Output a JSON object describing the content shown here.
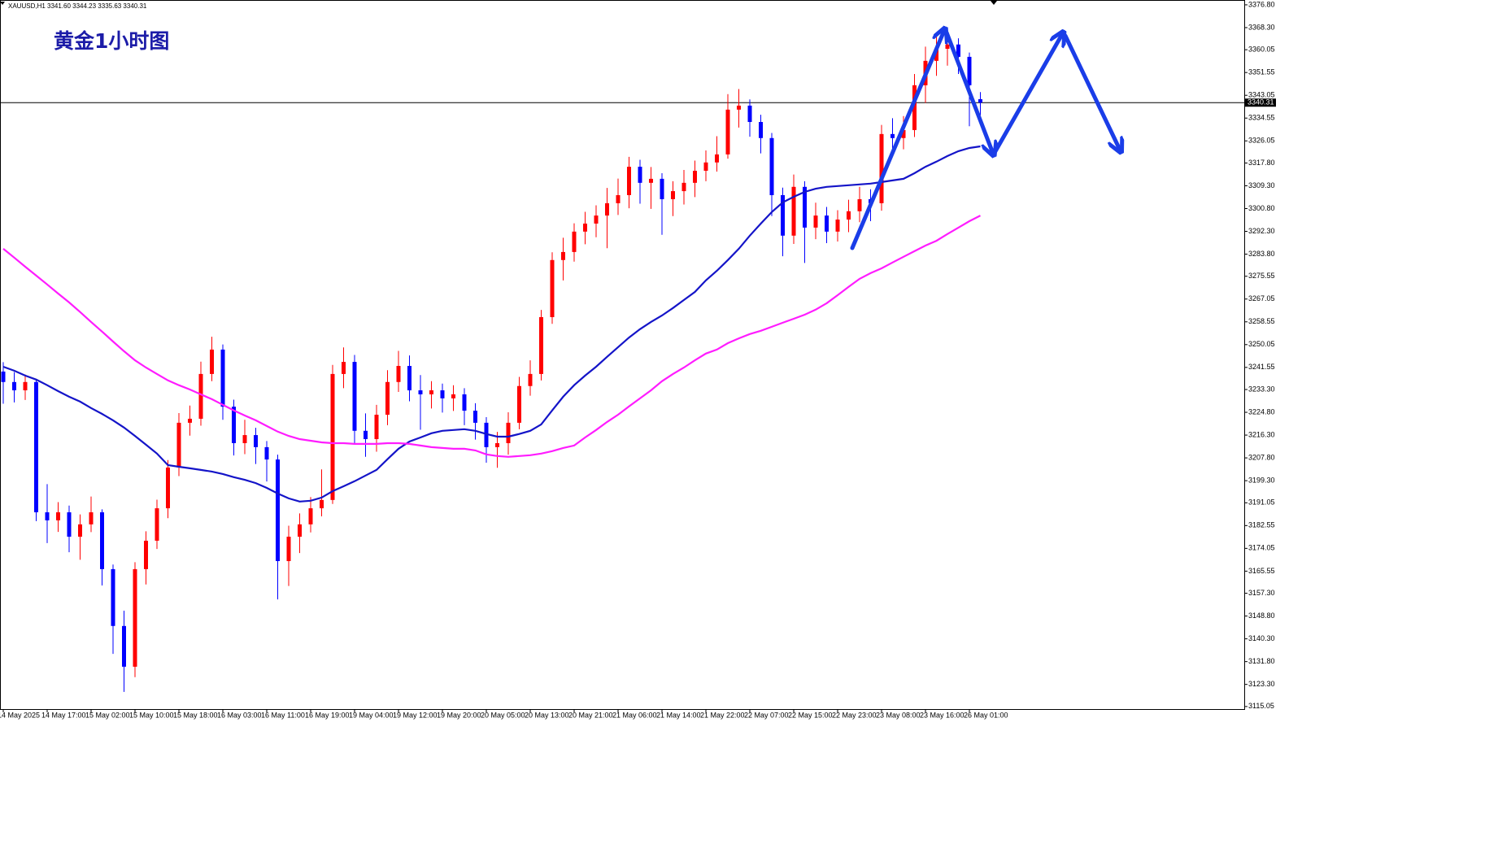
{
  "chart_data": {
    "type": "candlestick",
    "header": "XAUUSD,H1  3341.60 3344.23 3335.63 3340.31",
    "title": "黄金1小时图",
    "categories": [
      "14 May 2025",
      null,
      null,
      null,
      "14 May 17:00",
      null,
      null,
      null,
      "15 May 02:00",
      null,
      null,
      null,
      "15 May 10:00",
      null,
      null,
      null,
      "15 May 18:00",
      null,
      null,
      null,
      "16 May 03:00",
      null,
      null,
      null,
      "16 May 11:00",
      null,
      null,
      null,
      "16 May 19:00",
      null,
      null,
      null,
      "19 May 04:00",
      null,
      null,
      null,
      "19 May 12:00",
      null,
      null,
      null,
      "19 May 20:00",
      null,
      null,
      null,
      "20 May 05:00",
      null,
      null,
      null,
      "20 May 13:00",
      null,
      null,
      null,
      "20 May 21:00",
      null,
      null,
      null,
      "21 May 06:00",
      null,
      null,
      null,
      "21 May 14:00",
      null,
      null,
      null,
      "21 May 22:00",
      null,
      null,
      null,
      "22 May 07:00",
      null,
      null,
      null,
      "22 May 15:00",
      null,
      null,
      null,
      "22 May 23:00",
      null,
      null,
      null,
      "23 May 08:00",
      null,
      null,
      null,
      "23 May 16:00",
      null,
      null,
      null,
      "26 May 01:00",
      null
    ],
    "open": [
      3240.0,
      3236.1,
      3233.0,
      3236.1,
      3187.5,
      3184.5,
      3187.5,
      3178.4,
      3183.0,
      3187.5,
      3166.3,
      3145.1,
      3129.9,
      3166.3,
      3176.9,
      3189.0,
      3204.2,
      3220.9,
      3222.4,
      3239.1,
      3248.2,
      3226.9,
      3213.3,
      3216.3,
      3211.8,
      3207.2,
      3169.3,
      3178.4,
      3183.0,
      3189.0,
      3192.1,
      3239.1,
      3243.6,
      3217.9,
      3214.8,
      3223.9,
      3236.1,
      3242.1,
      3233.0,
      3231.5,
      3233.0,
      3230.0,
      3231.5,
      3225.4,
      3220.9,
      3211.8,
      3213.3,
      3220.9,
      3234.6,
      3239.1,
      3260.3,
      3281.6,
      3284.6,
      3292.2,
      3295.2,
      3298.2,
      3302.8,
      3305.8,
      3316.4,
      3310.4,
      3311.9,
      3304.3,
      3307.3,
      3310.4,
      3314.9,
      3318.0,
      3321.0,
      3337.7,
      3339.2,
      3333.1,
      3327.1,
      3305.8,
      3290.7,
      3308.9,
      3293.7,
      3298.2,
      3292.2,
      3296.7,
      3299.8,
      3304.3,
      3302.8,
      3328.6,
      3327.1,
      3330.1,
      3346.8,
      3355.9,
      3360.4,
      3362.0,
      3357.4,
      3341.6
    ],
    "high": [
      3243.5,
      3239.8,
      3238.9,
      3237.0,
      3198.0,
      3191.3,
      3190.0,
      3186.7,
      3193.4,
      3188.6,
      3168.0,
      3150.8,
      3168.9,
      3180.4,
      3192.2,
      3207.0,
      3224.5,
      3227.3,
      3243.7,
      3253.0,
      3250.1,
      3229.5,
      3222.0,
      3219.0,
      3214.1,
      3209.0,
      3182.5,
      3187.1,
      3193.2,
      3203.5,
      3242.5,
      3249.0,
      3246.2,
      3224.4,
      3227.6,
      3240.5,
      3247.7,
      3246.0,
      3238.7,
      3236.4,
      3235.5,
      3234.9,
      3233.8,
      3228.2,
      3223.0,
      3217.5,
      3224.8,
      3238.0,
      3244.2,
      3263.0,
      3284.5,
      3289.9,
      3295.3,
      3299.6,
      3302.0,
      3308.5,
      3312.0,
      3320.1,
      3319.0,
      3316.3,
      3314.0,
      3311.0,
      3315.2,
      3318.7,
      3322.5,
      3327.8,
      3343.5,
      3345.4,
      3341.5,
      3335.8,
      3329.0,
      3308.6,
      3313.5,
      3311.0,
      3303.0,
      3301.4,
      3300.2,
      3304.1,
      3308.9,
      3308.0,
      3332.0,
      3334.5,
      3335.3,
      3351.0,
      3361.2,
      3365.8,
      3367.5,
      3364.3,
      3359.0,
      3344.23
    ],
    "low": [
      3228.0,
      3228.5,
      3229.4,
      3184.2,
      3176.0,
      3180.2,
      3172.6,
      3169.8,
      3180.1,
      3160.2,
      3134.7,
      3120.5,
      3126.0,
      3160.6,
      3173.8,
      3185.3,
      3201.0,
      3216.1,
      3219.8,
      3236.4,
      3222.0,
      3208.7,
      3209.2,
      3205.5,
      3199.0,
      3155.0,
      3160.0,
      3172.3,
      3180.0,
      3186.0,
      3190.6,
      3233.8,
      3213.0,
      3208.2,
      3210.1,
      3220.0,
      3232.4,
      3228.9,
      3218.3,
      3226.2,
      3224.7,
      3225.3,
      3220.0,
      3214.6,
      3206.0,
      3204.1,
      3209.0,
      3218.5,
      3231.0,
      3236.7,
      3257.8,
      3274.0,
      3281.0,
      3287.5,
      3290.1,
      3286.0,
      3298.4,
      3300.9,
      3302.6,
      3300.7,
      3291.0,
      3298.0,
      3302.3,
      3305.1,
      3311.0,
      3314.6,
      3319.4,
      3331.0,
      3327.6,
      3321.4,
      3298.0,
      3283.0,
      3287.6,
      3280.5,
      3289.4,
      3287.9,
      3288.5,
      3292.0,
      3295.7,
      3296.1,
      3300.0,
      3321.8,
      3322.9,
      3327.5,
      3340.2,
      3350.3,
      3354.1,
      3351.0,
      3331.5,
      3335.63
    ],
    "close": [
      3236.1,
      3233.0,
      3236.1,
      3187.5,
      3184.5,
      3187.5,
      3178.4,
      3183.0,
      3187.5,
      3166.3,
      3145.1,
      3129.9,
      3166.3,
      3176.9,
      3189.0,
      3204.2,
      3220.9,
      3222.4,
      3239.1,
      3248.2,
      3226.9,
      3213.3,
      3216.3,
      3211.8,
      3207.2,
      3169.3,
      3178.4,
      3183.0,
      3189.0,
      3192.1,
      3239.1,
      3243.6,
      3217.9,
      3214.8,
      3223.9,
      3236.1,
      3242.1,
      3233.0,
      3231.5,
      3233.0,
      3230.0,
      3231.5,
      3225.4,
      3220.9,
      3211.8,
      3213.3,
      3220.9,
      3234.6,
      3239.1,
      3260.3,
      3281.6,
      3284.6,
      3292.2,
      3295.2,
      3298.2,
      3302.8,
      3305.8,
      3316.4,
      3310.4,
      3311.9,
      3304.3,
      3307.3,
      3310.4,
      3314.9,
      3318.0,
      3321.0,
      3337.7,
      3339.2,
      3333.1,
      3327.1,
      3305.8,
      3290.7,
      3308.9,
      3293.7,
      3298.2,
      3292.2,
      3296.7,
      3299.8,
      3304.3,
      3302.8,
      3328.6,
      3327.1,
      3330.1,
      3346.8,
      3355.9,
      3360.4,
      3362.0,
      3357.4,
      3346.8,
      3340.31
    ],
    "bull_color": "#ff0000",
    "bear_color": "#0000ff",
    "lines": [
      {
        "color": "#1414c8",
        "values": [
          3241.8,
          3240.3,
          3238.5,
          3237.0,
          3234.9,
          3232.7,
          3230.6,
          3228.8,
          3226.4,
          3224.2,
          3221.8,
          3219.1,
          3216.0,
          3212.7,
          3209.4,
          3205.1,
          3204.5,
          3203.9,
          3203.3,
          3202.7,
          3201.8,
          3200.6,
          3199.6,
          3198.4,
          3196.6,
          3194.5,
          3192.7,
          3191.5,
          3191.8,
          3193.0,
          3195.4,
          3197.2,
          3199.1,
          3201.2,
          3203.3,
          3207.3,
          3211.2,
          3213.9,
          3215.4,
          3217.0,
          3217.9,
          3218.2,
          3218.5,
          3217.9,
          3216.7,
          3215.7,
          3215.7,
          3216.7,
          3217.9,
          3220.3,
          3225.5,
          3230.6,
          3234.9,
          3238.5,
          3241.8,
          3245.5,
          3249.1,
          3252.7,
          3255.8,
          3258.5,
          3260.9,
          3263.7,
          3266.7,
          3269.7,
          3274.0,
          3277.6,
          3281.6,
          3285.8,
          3290.7,
          3295.2,
          3299.5,
          3303.1,
          3305.2,
          3307.0,
          3308.2,
          3308.9,
          3309.2,
          3309.5,
          3309.8,
          3310.1,
          3310.7,
          3311.3,
          3311.9,
          3314.0,
          3316.4,
          3318.3,
          3320.4,
          3322.2,
          3323.4,
          3324.0
        ]
      },
      {
        "color": "#ff1cff",
        "values": [
          3285.8,
          3282.5,
          3279.1,
          3275.8,
          3272.5,
          3269.1,
          3265.8,
          3262.2,
          3258.5,
          3254.9,
          3251.2,
          3247.6,
          3244.2,
          3241.5,
          3239.1,
          3236.7,
          3234.9,
          3233.3,
          3231.5,
          3229.7,
          3227.6,
          3225.5,
          3223.6,
          3221.8,
          3219.7,
          3217.6,
          3216.0,
          3214.8,
          3214.2,
          3213.6,
          3213.3,
          3213.3,
          3213.0,
          3213.0,
          3213.0,
          3213.3,
          3213.3,
          3213.0,
          3212.4,
          3211.8,
          3211.5,
          3211.2,
          3211.2,
          3210.6,
          3209.1,
          3208.5,
          3208.2,
          3208.5,
          3208.8,
          3209.4,
          3210.3,
          3211.5,
          3212.4,
          3215.4,
          3218.2,
          3221.2,
          3223.9,
          3227.0,
          3230.0,
          3233.0,
          3236.4,
          3239.1,
          3241.5,
          3244.2,
          3246.7,
          3248.2,
          3250.6,
          3252.4,
          3254.0,
          3255.2,
          3256.7,
          3258.2,
          3259.7,
          3261.2,
          3263.1,
          3265.5,
          3268.5,
          3271.6,
          3274.6,
          3276.7,
          3278.5,
          3280.7,
          3282.8,
          3284.9,
          3287.0,
          3288.8,
          3291.3,
          3293.7,
          3296.1,
          3298.2
        ]
      }
    ],
    "price_line": 3340.31,
    "ylim": [
      3114.1,
      3378.6
    ],
    "yticks": [
      {
        "value": 3376.8,
        "label": "3376.80"
      },
      {
        "value": 3368.3,
        "label": "3368.30"
      },
      3360.05,
      3351.55,
      3343.05,
      3334.55,
      3326.05,
      {
        "value": 3317.8,
        "label": "3317.80"
      },
      {
        "value": 3309.3,
        "label": "3309.30"
      },
      {
        "value": 3300.8,
        "label": "3300.80"
      },
      {
        "value": 3292.3,
        "label": "3292.30"
      },
      {
        "value": 3283.8,
        "label": "3283.80"
      },
      3275.55,
      3267.05,
      3258.55,
      3250.05,
      3241.55,
      {
        "value": 3233.3,
        "label": "3233.30"
      },
      {
        "value": 3224.8,
        "label": "3224.80"
      },
      {
        "value": 3216.3,
        "label": "3216.30"
      },
      {
        "value": 3207.8,
        "label": "3207.80"
      },
      {
        "value": 3199.3,
        "label": "3199.30"
      },
      3191.05,
      3182.55,
      3174.05,
      3165.55,
      {
        "value": 3157.3,
        "label": "3157.30"
      },
      {
        "value": 3148.8,
        "label": "3148.80"
      },
      {
        "value": 3140.3,
        "label": "3140.30"
      },
      {
        "value": 3131.8,
        "label": "3131.80"
      },
      {
        "value": 3123.3,
        "label": "3123.30"
      },
      3115.05
    ]
  }
}
